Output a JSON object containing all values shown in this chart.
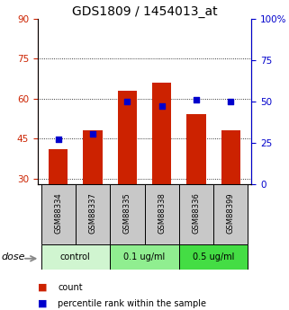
{
  "title": "GDS1809 / 1454013_at",
  "samples": [
    "GSM88334",
    "GSM88337",
    "GSM88335",
    "GSM88338",
    "GSM88336",
    "GSM88399"
  ],
  "group_labels": [
    "control",
    "0.1 ug/ml",
    "0.5 ug/ml"
  ],
  "count_values": [
    41,
    48,
    63,
    66,
    54,
    48
  ],
  "percentile_values": [
    27,
    30,
    50,
    47,
    51,
    50
  ],
  "ylim_left": [
    28,
    90
  ],
  "ylim_right": [
    0,
    100
  ],
  "yticks_left": [
    30,
    45,
    60,
    75,
    90
  ],
  "yticks_right": [
    0,
    25,
    50,
    75,
    100
  ],
  "bar_color": "#cc2200",
  "dot_color": "#0000cc",
  "axis_left_color": "#cc2200",
  "axis_right_color": "#0000cc",
  "sample_bg": "#c8c8c8",
  "group_colors": {
    "control": "#d0f5d0",
    "0.1 ug/ml": "#90ee90",
    "0.5 ug/ml": "#44dd44"
  },
  "dose_label": "dose",
  "legend_count": "count",
  "legend_pct": "percentile rank within the sample",
  "title_fontsize": 10,
  "tick_fontsize": 7.5,
  "sample_fontsize": 6,
  "group_fontsize": 7,
  "legend_fontsize": 7
}
